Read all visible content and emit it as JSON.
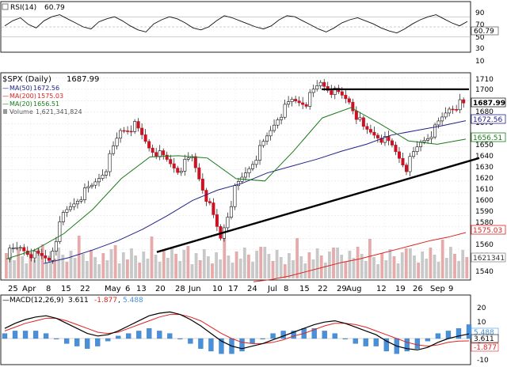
{
  "rsi_panel": {
    "label": "RSI(14)",
    "value": "60.79",
    "levels": [
      "90",
      "70",
      "50",
      "30",
      "10"
    ],
    "value_badge": "60.79"
  },
  "price_panel": {
    "title": "$SPX (Daily)",
    "close": "1687.99",
    "legend": [
      {
        "label": "MA(50)",
        "value": "1672.56",
        "color": "#22228a"
      },
      {
        "label": "MA(200)",
        "value": "1575.03",
        "color": "#dd2222"
      },
      {
        "label": "MA(20)",
        "value": "1656.51",
        "color": "#1a7a1a"
      },
      {
        "label": "Volume",
        "value": "1,621,341,824",
        "color": "#888888"
      }
    ],
    "y_ticks": [
      "1710",
      "1700",
      "1690",
      "1680",
      "1670",
      "1660",
      "1650",
      "1640",
      "1630",
      "1620",
      "1610",
      "1600",
      "1590",
      "1580",
      "1570",
      "1560",
      "1550",
      "1540"
    ],
    "badges": {
      "close": "1687.99",
      "ma50": "1672.56",
      "ma20": "1656.51",
      "ma200": "1575.03",
      "volume": "1621341"
    },
    "x_labels": [
      "25",
      "Apr",
      "8",
      "15",
      "22",
      "May",
      "6",
      "13",
      "20",
      "28",
      "Jun",
      "10",
      "17",
      "24",
      "Jul",
      "8",
      "15",
      "22",
      "29",
      "Aug",
      "12",
      "19",
      "26",
      "Sep",
      "9"
    ]
  },
  "macd_panel": {
    "label": "MACD(12,26,9)",
    "macd": "3.611",
    "signal": "-1.877",
    "histogram": "5.488",
    "levels": [
      "20",
      "10",
      "0",
      "-10"
    ],
    "badges": {
      "top": "5.488",
      "macd": "3.611",
      "signal": "-1.877"
    }
  },
  "colors": {
    "macd": "#000000",
    "signal": "#dd2222",
    "histogram": "#4a90d9",
    "up_candle": "#ffffff",
    "down_candle": "#cc1122"
  },
  "chart_data": {
    "type": "line",
    "title": "$SPX (Daily) 1687.99",
    "series": [
      {
        "name": "MA(50)",
        "values": [
          1548,
          1553,
          1560,
          1568,
          1578,
          1590,
          1603,
          1612,
          1618,
          1627,
          1633,
          1639,
          1646,
          1652,
          1660,
          1664,
          1668,
          1672.56
        ]
      },
      {
        "name": "MA(20)",
        "values": [
          1552,
          1560,
          1574,
          1595,
          1622,
          1641,
          1642,
          1640,
          1622,
          1620,
          1646,
          1675,
          1684,
          1670,
          1655,
          1652,
          1656.51
        ]
      },
      {
        "name": "MA(200)",
        "values": [
          1532,
          1534,
          1537,
          1541,
          1545,
          1549,
          1552,
          1556,
          1560,
          1564,
          1568,
          1571,
          1575.03
        ]
      },
      {
        "name": "Close (approx.)",
        "values": [
          1556,
          1562,
          1555,
          1552,
          1590,
          1605,
          1615,
          1632,
          1664,
          1668,
          1650,
          1640,
          1630,
          1640,
          1606,
          1570,
          1612,
          1632,
          1652,
          1676,
          1690,
          1689,
          1706,
          1697,
          1690,
          1665,
          1660,
          1650,
          1632,
          1654,
          1665,
          1684,
          1687.99
        ]
      }
    ],
    "y_ticks": [
      1540,
      1550,
      1560,
      1570,
      1580,
      1590,
      1600,
      1610,
      1620,
      1630,
      1640,
      1650,
      1660,
      1670,
      1680,
      1690,
      1700,
      1710
    ],
    "ylim": [
      1535,
      1713
    ],
    "resistance": 1700,
    "support": {
      "from": 1558,
      "to": 1640
    },
    "rsi": {
      "value": 60.79,
      "levels": [
        90,
        70,
        50,
        30,
        10
      ]
    },
    "macd": {
      "macd": 3.611,
      "signal": -1.877,
      "histogram": 5.488,
      "levels": [
        20,
        10,
        0,
        -10
      ]
    }
  }
}
